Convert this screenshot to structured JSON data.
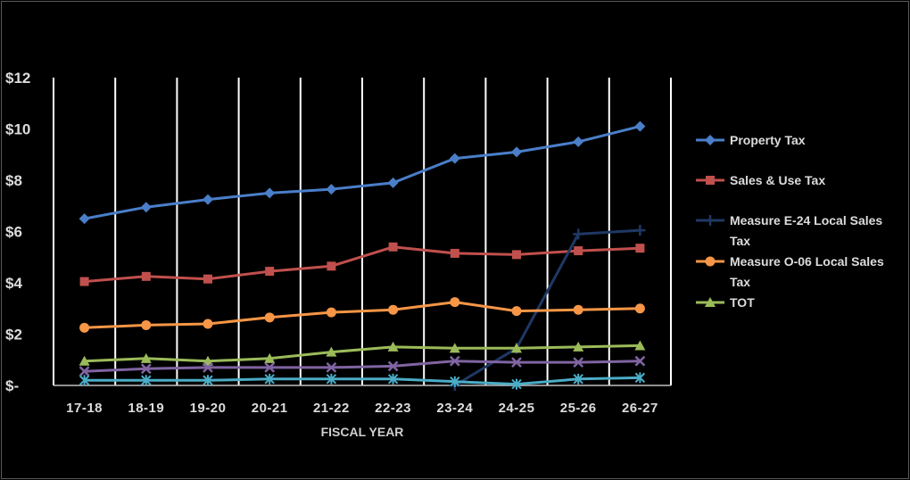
{
  "chart_data": {
    "type": "line",
    "title": "",
    "xlabel": "FISCAL YEAR",
    "ylabel": "",
    "categories": [
      "17-18",
      "18-19",
      "19-20",
      "20-21",
      "21-22",
      "22-23",
      "23-24",
      "24-25",
      "25-26",
      "26-27"
    ],
    "yticks": [
      "$12",
      "$10",
      "$8",
      "$6",
      "$4",
      "$2",
      "$-"
    ],
    "ylim": [
      0,
      12
    ],
    "grid": "vertical",
    "legend_position": "right",
    "series": [
      {
        "name": "Property Tax",
        "color": "#4A7EC9",
        "marker": "diamond",
        "values": [
          6.5,
          6.95,
          7.25,
          7.5,
          7.65,
          7.9,
          8.85,
          9.1,
          9.5,
          10.1
        ]
      },
      {
        "name": "Sales & Use Tax",
        "color": "#C0504D",
        "marker": "square",
        "values": [
          4.05,
          4.25,
          4.15,
          4.45,
          4.65,
          5.4,
          5.15,
          5.1,
          5.25,
          5.35
        ]
      },
      {
        "name": "Measure E-24 Local Sales Tax",
        "color": "#1F3864",
        "marker": "plus",
        "values": [
          null,
          null,
          null,
          null,
          null,
          null,
          0.0,
          1.45,
          5.9,
          6.05
        ]
      },
      {
        "name": "Measure O-06 Local Sales Tax",
        "color": "#F79646",
        "marker": "circle",
        "values": [
          2.25,
          2.35,
          2.4,
          2.65,
          2.85,
          2.95,
          3.25,
          2.9,
          2.95,
          3.0
        ]
      },
      {
        "name": "TOT",
        "color": "#9BBB59",
        "marker": "triangle",
        "values": [
          0.95,
          1.05,
          0.95,
          1.05,
          1.3,
          1.5,
          1.45,
          1.45,
          1.5,
          1.55
        ]
      },
      {
        "name": "",
        "color": "#8064A2",
        "marker": "x",
        "values": [
          0.55,
          0.65,
          0.7,
          0.7,
          0.7,
          0.75,
          0.95,
          0.9,
          0.9,
          0.95
        ]
      },
      {
        "name": "",
        "color": "#4BACC6",
        "marker": "star",
        "values": [
          0.2,
          0.2,
          0.2,
          0.25,
          0.25,
          0.25,
          0.15,
          0.05,
          0.25,
          0.3
        ]
      }
    ]
  }
}
